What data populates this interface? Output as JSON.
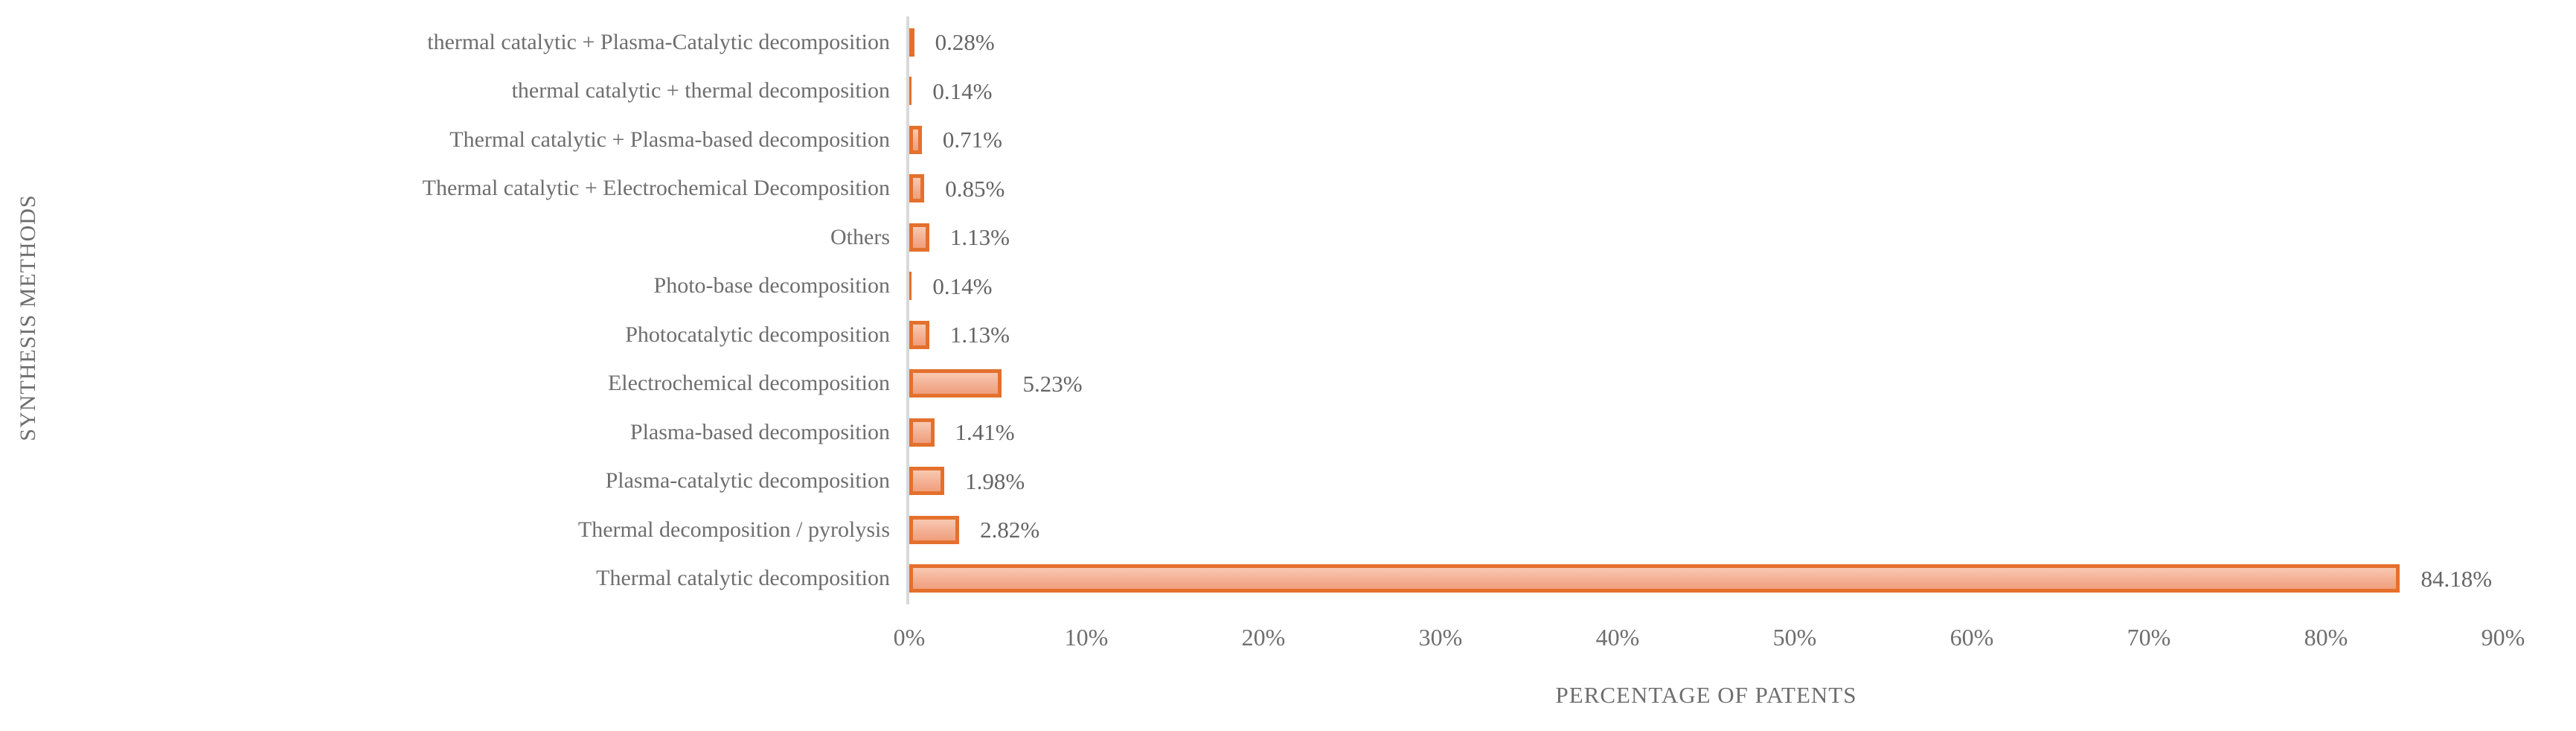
{
  "chart_data": {
    "type": "bar",
    "orientation": "horizontal",
    "title": "",
    "xlabel": "PERCENTAGE OF PATENTS",
    "ylabel": "SYNTHESIS METHODS",
    "xlim": [
      0,
      90
    ],
    "xtick_step": 10,
    "xtick_labels": [
      "0%",
      "10%",
      "20%",
      "30%",
      "40%",
      "50%",
      "60%",
      "70%",
      "80%",
      "90%"
    ],
    "grid": false,
    "legend": false,
    "categories_top_to_bottom": [
      "thermal catalytic + Plasma-Catalytic decomposition",
      "thermal catalytic + thermal decomposition",
      "Thermal catalytic + Plasma-based decomposition",
      "Thermal catalytic + Electrochemical Decomposition",
      "Others",
      "Photo-base decomposition",
      "Photocatalytic decomposition",
      "Electrochemical decomposition",
      "Plasma-based decomposition",
      "Plasma-catalytic decomposition",
      "Thermal decomposition / pyrolysis",
      "Thermal catalytic decomposition"
    ],
    "values": [
      0.28,
      0.14,
      0.71,
      0.85,
      1.13,
      0.14,
      1.13,
      5.23,
      1.41,
      1.98,
      2.82,
      84.18
    ],
    "value_labels": [
      "0.28%",
      "0.14%",
      "0.71%",
      "0.85%",
      "1.13%",
      "0.14%",
      "1.13%",
      "5.23%",
      "1.41%",
      "1.98%",
      "2.82%",
      "84.18%"
    ],
    "colors": {
      "bar_border": "#e4702d",
      "bar_fill_top": "#f8c9b2",
      "bar_fill_bottom": "#ef9f7c",
      "axis_line": "#d9d9d9",
      "text": "#6e6e6e"
    }
  }
}
